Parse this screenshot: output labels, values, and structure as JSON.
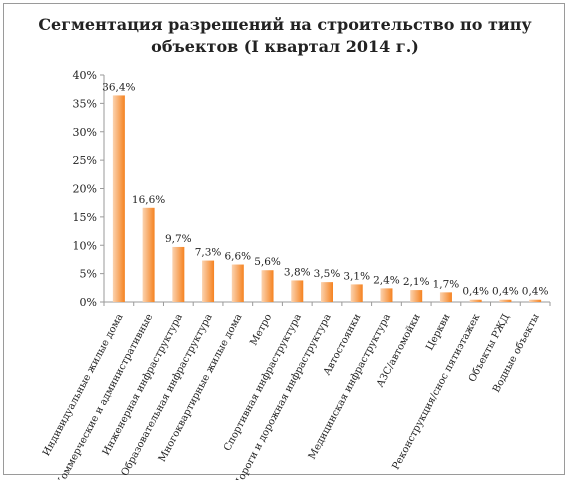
{
  "chart_data": {
    "type": "bar",
    "title_line1": "Сегментация разрешений на строительство по типу",
    "title_line2": "объектов (I квартал 2014 г.)",
    "categories": [
      "Индивидуальные жилые дома",
      "Коммерческие и административные",
      "Инженерная инфраструктура",
      "Образовательная инфраструктура",
      "Многоквартирные жилые дома",
      "Метро",
      "Спортивная инфраструктура",
      "Дороги и дорожная инфраструктура",
      "Автостоянки",
      "Медицинская инфраструктура",
      "АЗС/автомойки",
      "Церкви",
      "Реконструкция/снос пятиэтажек",
      "Объекты РЖД",
      "Водные объекты"
    ],
    "values": [
      36.4,
      16.6,
      9.7,
      7.3,
      6.6,
      5.6,
      3.8,
      3.5,
      3.1,
      2.4,
      2.1,
      1.7,
      0.4,
      0.4,
      0.4
    ],
    "data_labels": [
      "36,4%",
      "16,6%",
      "9,7%",
      "7,3%",
      "6,6%",
      "5,6%",
      "3,8%",
      "3,5%",
      "3,1%",
      "2,4%",
      "2,1%",
      "1,7%",
      "0,4%",
      "0,4%",
      "0,4%"
    ],
    "y_ticks": [
      "0%",
      "5%",
      "10%",
      "15%",
      "20%",
      "25%",
      "30%",
      "35%",
      "40%"
    ],
    "ylim": [
      0,
      40
    ],
    "bar_color_light": "#fbd3b0",
    "bar_color_dark": "#f58220",
    "axis_color": "#9a9a9a",
    "grid": false,
    "legend": false
  }
}
